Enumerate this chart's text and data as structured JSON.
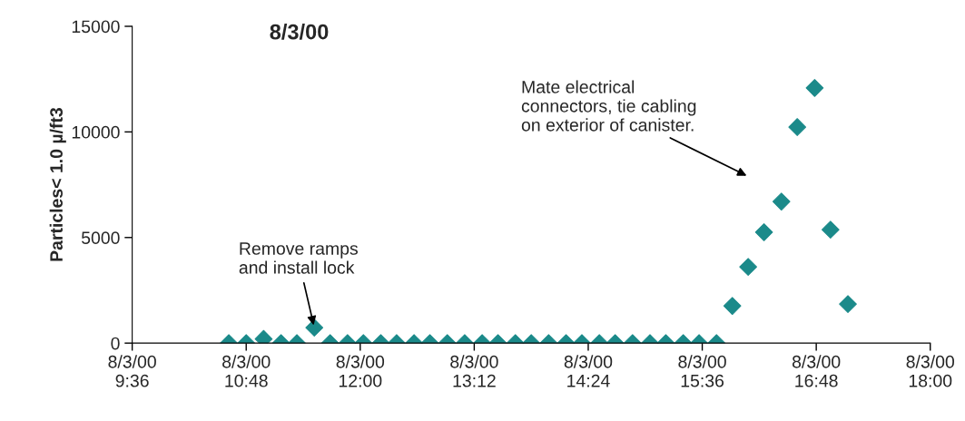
{
  "chart_data": {
    "type": "scatter",
    "title": "8/3/00",
    "ylabel": "Particles< 1.0 µ/ft3",
    "x": [
      "2000-08-03T10:37",
      "2000-08-03T10:48",
      "2000-08-03T10:59",
      "2000-08-03T11:10",
      "2000-08-03T11:20",
      "2000-08-03T11:31",
      "2000-08-03T11:41",
      "2000-08-03T11:52",
      "2000-08-03T12:02",
      "2000-08-03T12:13",
      "2000-08-03T12:23",
      "2000-08-03T12:34",
      "2000-08-03T12:44",
      "2000-08-03T12:55",
      "2000-08-03T13:06",
      "2000-08-03T13:17",
      "2000-08-03T13:27",
      "2000-08-03T13:38",
      "2000-08-03T13:48",
      "2000-08-03T13:59",
      "2000-08-03T14:10",
      "2000-08-03T14:20",
      "2000-08-03T14:31",
      "2000-08-03T14:41",
      "2000-08-03T14:52",
      "2000-08-03T15:03",
      "2000-08-03T15:13",
      "2000-08-03T15:24",
      "2000-08-03T15:34",
      "2000-08-03T15:45",
      "2000-08-03T15:55",
      "2000-08-03T16:05",
      "2000-08-03T16:15",
      "2000-08-03T16:26",
      "2000-08-03T16:36",
      "2000-08-03T16:47",
      "2000-08-03T16:57",
      "2000-08-03T17:08"
    ],
    "series": [
      {
        "color": "#1b8a8a",
        "values": [
          0,
          0,
          200,
          0,
          0,
          730,
          0,
          0,
          0,
          0,
          0,
          0,
          0,
          0,
          0,
          0,
          0,
          0,
          0,
          0,
          0,
          0,
          0,
          0,
          0,
          0,
          0,
          0,
          0,
          0,
          1760,
          3610,
          5250,
          6700,
          10230,
          12080,
          5370,
          1850
        ]
      }
    ],
    "marker": "diamond",
    "grid": false,
    "legend": false,
    "xlim": [
      "2000-08-03T09:36",
      "2000-08-03T18:00"
    ],
    "xticks": [
      {
        "value": "2000-08-03T09:36",
        "label": "8/3/00\n9:36"
      },
      {
        "value": "2000-08-03T10:48",
        "label": "8/3/00\n10:48"
      },
      {
        "value": "2000-08-03T12:00",
        "label": "8/3/00\n12:00"
      },
      {
        "value": "2000-08-03T13:12",
        "label": "8/3/00\n13:12"
      },
      {
        "value": "2000-08-03T14:24",
        "label": "8/3/00\n14:24"
      },
      {
        "value": "2000-08-03T15:36",
        "label": "8/3/00\n15:36"
      },
      {
        "value": "2000-08-03T16:48",
        "label": "8/3/00\n16:48"
      },
      {
        "value": "2000-08-03T18:00",
        "label": "8/3/00\n18:00"
      }
    ],
    "ylim": [
      0,
      15000
    ],
    "yticks": [
      0,
      5000,
      10000,
      15000
    ],
    "annotations": [
      {
        "text": "Remove ramps\nand install lock",
        "x": "2000-08-03T11:31",
        "y": 730
      },
      "Mate electrical\nconnectors, tie cabling\non exterior of canister."
    ]
  }
}
